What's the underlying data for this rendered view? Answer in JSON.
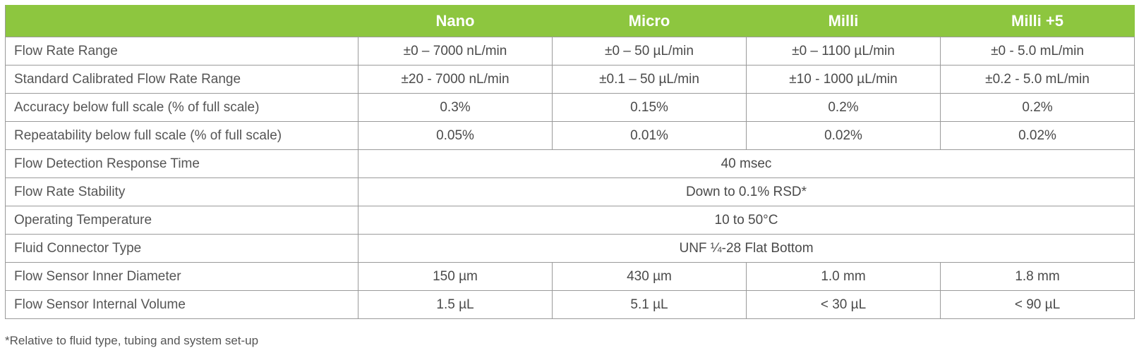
{
  "table": {
    "columns": [
      "",
      "Nano",
      "Micro",
      "Milli",
      "Milli +5"
    ],
    "rows": [
      {
        "label": "Flow Rate Range",
        "cells": [
          "±0 – 7000 nL/min",
          "±0 – 50 µL/min",
          "±0 – 1100 µL/min",
          "±0 - 5.0 mL/min"
        ]
      },
      {
        "label": "Standard Calibrated Flow Rate Range",
        "cells": [
          "±20 - 7000 nL/min",
          "±0.1 – 50 µL/min",
          "±10 - 1000 µL/min",
          "±0.2 - 5.0 mL/min"
        ]
      },
      {
        "label": "Accuracy below full scale (% of full scale)",
        "cells": [
          "0.3%",
          "0.15%",
          "0.2%",
          "0.2%"
        ]
      },
      {
        "label": "Repeatability below full scale (% of full scale)",
        "cells": [
          "0.05%",
          "0.01%",
          "0.02%",
          "0.02%"
        ]
      },
      {
        "label": "Flow Detection Response Time",
        "merged": "40 msec"
      },
      {
        "label": "Flow Rate Stability",
        "merged": "Down to 0.1% RSD*"
      },
      {
        "label": "Operating Temperature",
        "merged": "10 to 50°C"
      },
      {
        "label": "Fluid Connector Type",
        "merged": "UNF ¼-28 Flat Bottom"
      },
      {
        "label": "Flow Sensor Inner Diameter",
        "cells": [
          "150 µm",
          "430 µm",
          "1.0 mm",
          "1.8 mm"
        ]
      },
      {
        "label": "Flow Sensor Internal Volume",
        "cells": [
          "1.5 µL",
          "5.1 µL",
          "< 30 µL",
          "< 90 µL"
        ]
      }
    ]
  },
  "footnote": "*Relative to fluid type, tubing and system set-up",
  "colors": {
    "header_bg": "#8dc63f",
    "header_text": "#ffffff",
    "grid": "#9a9a9a",
    "text": "#4a4a4a"
  }
}
